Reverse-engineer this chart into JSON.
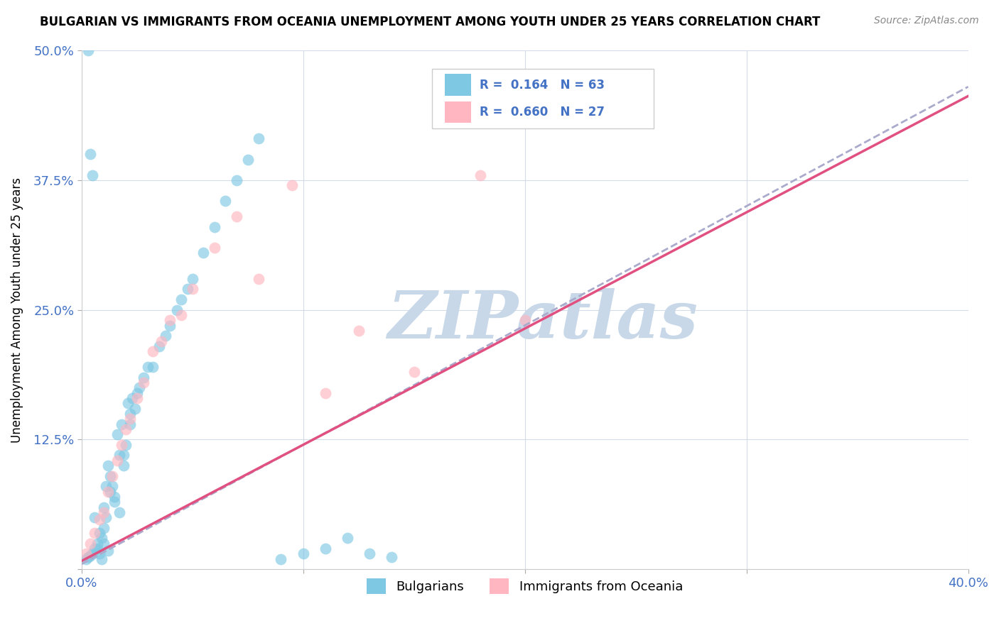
{
  "title": "BULGARIAN VS IMMIGRANTS FROM OCEANIA UNEMPLOYMENT AMONG YOUTH UNDER 25 YEARS CORRELATION CHART",
  "source": "Source: ZipAtlas.com",
  "ylabel": "Unemployment Among Youth under 25 years",
  "xlabel": "",
  "xlim": [
    0.0,
    0.4
  ],
  "ylim": [
    0.0,
    0.5
  ],
  "xticks": [
    0.0,
    0.1,
    0.2,
    0.3,
    0.4
  ],
  "yticks": [
    0.0,
    0.125,
    0.25,
    0.375,
    0.5
  ],
  "R_blue": 0.164,
  "N_blue": 63,
  "R_pink": 0.66,
  "N_pink": 27,
  "blue_color": "#7EC8E3",
  "pink_color": "#FFB6C1",
  "blue_line_color": "#AAAACC",
  "pink_line_color": "#E05080",
  "watermark": "ZIPatlas",
  "watermark_color": "#C8D8E8",
  "blue_scatter_x": [
    0.002,
    0.003,
    0.004,
    0.005,
    0.006,
    0.007,
    0.008,
    0.009,
    0.01,
    0.01,
    0.011,
    0.012,
    0.013,
    0.014,
    0.015,
    0.016,
    0.017,
    0.018,
    0.019,
    0.02,
    0.021,
    0.022,
    0.023,
    0.024,
    0.025,
    0.026,
    0.028,
    0.03,
    0.032,
    0.035,
    0.038,
    0.04,
    0.043,
    0.045,
    0.048,
    0.05,
    0.055,
    0.06,
    0.065,
    0.07,
    0.075,
    0.08,
    0.09,
    0.1,
    0.11,
    0.12,
    0.13,
    0.14,
    0.003,
    0.004,
    0.005,
    0.006,
    0.007,
    0.008,
    0.009,
    0.01,
    0.011,
    0.012,
    0.013,
    0.015,
    0.017,
    0.019,
    0.022
  ],
  "blue_scatter_y": [
    0.01,
    0.012,
    0.013,
    0.015,
    0.05,
    0.02,
    0.015,
    0.03,
    0.025,
    0.06,
    0.08,
    0.1,
    0.09,
    0.08,
    0.07,
    0.13,
    0.11,
    0.14,
    0.1,
    0.12,
    0.16,
    0.15,
    0.165,
    0.155,
    0.17,
    0.175,
    0.185,
    0.195,
    0.195,
    0.215,
    0.225,
    0.235,
    0.25,
    0.26,
    0.27,
    0.28,
    0.305,
    0.33,
    0.355,
    0.375,
    0.395,
    0.415,
    0.01,
    0.015,
    0.02,
    0.03,
    0.015,
    0.012,
    0.5,
    0.4,
    0.38,
    0.02,
    0.025,
    0.035,
    0.01,
    0.04,
    0.05,
    0.018,
    0.075,
    0.065,
    0.055,
    0.11,
    0.14
  ],
  "pink_scatter_x": [
    0.002,
    0.004,
    0.006,
    0.008,
    0.01,
    0.012,
    0.014,
    0.016,
    0.018,
    0.02,
    0.022,
    0.025,
    0.028,
    0.032,
    0.036,
    0.04,
    0.045,
    0.05,
    0.06,
    0.07,
    0.08,
    0.095,
    0.11,
    0.125,
    0.15,
    0.18,
    0.2
  ],
  "pink_scatter_y": [
    0.015,
    0.025,
    0.035,
    0.048,
    0.055,
    0.075,
    0.09,
    0.105,
    0.12,
    0.135,
    0.145,
    0.165,
    0.18,
    0.21,
    0.22,
    0.24,
    0.245,
    0.27,
    0.31,
    0.34,
    0.28,
    0.37,
    0.17,
    0.23,
    0.19,
    0.38,
    0.24
  ]
}
